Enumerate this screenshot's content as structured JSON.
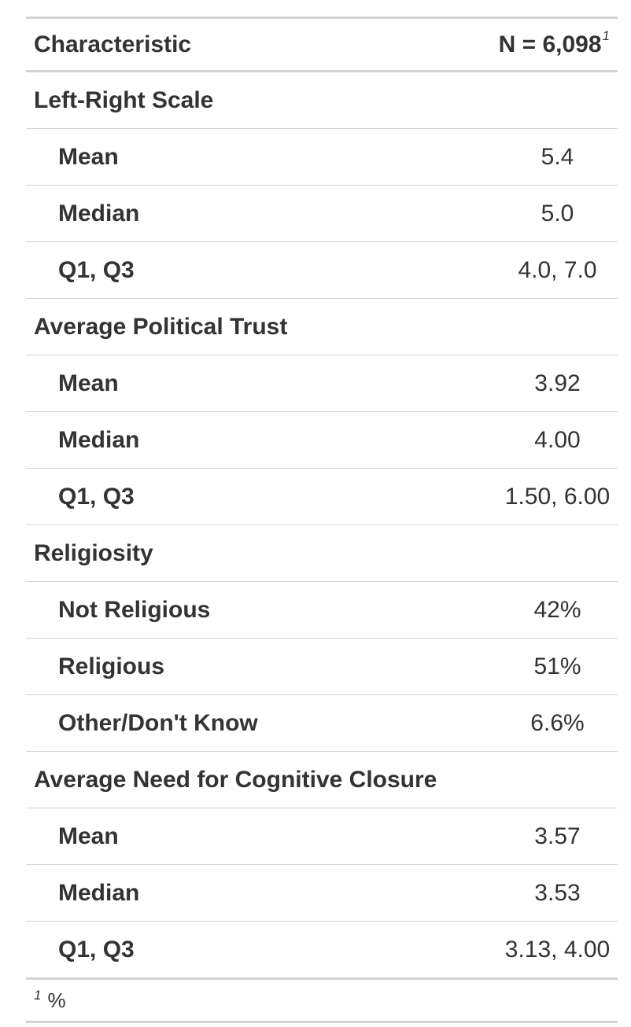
{
  "table": {
    "header": {
      "characteristic_label": "Characteristic",
      "n_label": "N = 6,098",
      "n_footnote_marker": "1"
    },
    "groups": [
      {
        "label": "Left-Right Scale",
        "rows": [
          {
            "label": "Mean",
            "value": "5.4"
          },
          {
            "label": "Median",
            "value": "5.0"
          },
          {
            "label": "Q1, Q3",
            "value": "4.0, 7.0"
          }
        ]
      },
      {
        "label": "Average Political Trust",
        "rows": [
          {
            "label": "Mean",
            "value": "3.92"
          },
          {
            "label": "Median",
            "value": "4.00"
          },
          {
            "label": "Q1, Q3",
            "value": "1.50, 6.00"
          }
        ]
      },
      {
        "label": "Religiosity",
        "rows": [
          {
            "label": "Not Religious",
            "value": "42%"
          },
          {
            "label": "Religious",
            "value": "51%"
          },
          {
            "label": "Other/Don't Know",
            "value": "6.6%"
          }
        ]
      },
      {
        "label": "Average Need for Cognitive Closure",
        "rows": [
          {
            "label": "Mean",
            "value": "3.57"
          },
          {
            "label": "Median",
            "value": "3.53"
          },
          {
            "label": "Q1, Q3",
            "value": "3.13, 4.00"
          }
        ]
      }
    ],
    "footnote": {
      "marker": "1",
      "text": "%"
    }
  }
}
